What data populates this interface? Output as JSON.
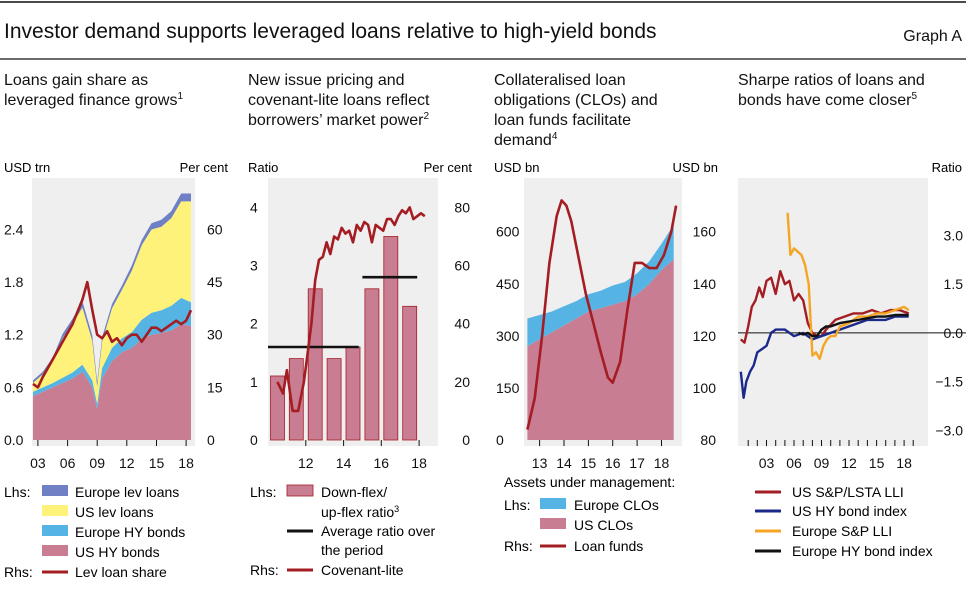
{
  "header": {
    "title": "Investor demand supports leveraged loans relative to high-yield bonds",
    "graph_label": "Graph A"
  },
  "colors": {
    "europe_lev": "#6f80c4",
    "us_lev": "#fff27a",
    "europe_hy": "#55b4e4",
    "us_hy": "#c97d92",
    "line_red": "#a41d23",
    "line_navy": "#1b2a8a",
    "line_orange": "#f4a623",
    "line_black": "#111111",
    "panel_bg": "#efefef"
  },
  "panels": [
    {
      "title_lines": [
        "Loans gain share as",
        "leveraged finance grows"
      ],
      "title_sup": "1",
      "left_unit": "USD trn",
      "right_unit": "Per cent"
    },
    {
      "title_lines": [
        "New issue pricing and",
        "covenant-lite loans reflect",
        "borrowers’ market power"
      ],
      "title_sup": "2",
      "left_unit": "Ratio",
      "right_unit": "Per cent"
    },
    {
      "title_lines": [
        "Collateralised loan",
        "obligations (CLOs) and",
        "loan funds facilitate",
        "demand"
      ],
      "title_sup": "4",
      "left_unit": "USD bn",
      "right_unit": "USD bn"
    },
    {
      "title_lines": [
        "Sharpe ratios of loans and",
        "bonds have come closer"
      ],
      "title_sup": "5",
      "left_unit": "",
      "right_unit": "Ratio"
    }
  ],
  "legends": {
    "p1": {
      "lhs": "Lhs:",
      "rhs": "Rhs:",
      "items": [
        "Europe lev loans",
        "US lev loans",
        "Europe HY bonds",
        "US HY bonds",
        "Lev loan share"
      ]
    },
    "p2": {
      "lhs": "Lhs:",
      "rhs": "Rhs:",
      "bar_l1": "Down-flex/",
      "bar_l2": "up-flex ratio",
      "bar_sup": "3",
      "avg_l1": "Average ratio over",
      "avg_l2": "the period",
      "covlite": "Covenant-lite"
    },
    "p3": {
      "heading": "Assets under management:",
      "lhs": "Lhs:",
      "rhs": "Rhs:",
      "items": [
        "Europe CLOs",
        "US CLOs",
        "Loan funds"
      ]
    },
    "p4": {
      "items": [
        "US S&P/LSTA LLI",
        "US HY bond index",
        "Europe S&P LLI",
        "Europe HY bond index"
      ]
    }
  },
  "chart_data": [
    {
      "type": "area",
      "ylabel_left": "USD trn",
      "ylabel_right": "Per cent",
      "ylim_left": [
        0,
        2.85
      ],
      "ylim_right": [
        0,
        71.25
      ],
      "yticks_left": [
        "0.0",
        "0.6",
        "1.2",
        "1.8",
        "2.4"
      ],
      "yticks_left_values": [
        0,
        0.6,
        1.2,
        1.8,
        2.4
      ],
      "yticks_right": [
        "0",
        "15",
        "30",
        "45",
        "60"
      ],
      "yticks_right_values": [
        0,
        15,
        30,
        45,
        60
      ],
      "xlim": [
        2002.5,
        2018.8
      ],
      "xticks": [
        "03",
        "06",
        "09",
        "12",
        "15",
        "18"
      ],
      "xtick_values": [
        2003,
        2006,
        2009,
        2012,
        2015,
        2018
      ],
      "x": [
        2002.5,
        2003.5,
        2004.5,
        2005.5,
        2006.5,
        2007.5,
        2008.5,
        2009.0,
        2009.5,
        2010.5,
        2011.5,
        2012.5,
        2013.5,
        2014.5,
        2015.5,
        2016.5,
        2017.5,
        2018.5
      ],
      "series": [
        {
          "name": "US HY bonds",
          "values": [
            0.5,
            0.55,
            0.6,
            0.65,
            0.7,
            0.78,
            0.6,
            0.35,
            0.7,
            0.9,
            1.0,
            1.05,
            1.15,
            1.2,
            1.22,
            1.25,
            1.32,
            1.3
          ]
        },
        {
          "name": "Europe HY bonds",
          "values": [
            0.05,
            0.05,
            0.05,
            0.06,
            0.07,
            0.08,
            0.08,
            0.06,
            0.12,
            0.15,
            0.16,
            0.18,
            0.22,
            0.25,
            0.26,
            0.28,
            0.3,
            0.27
          ]
        },
        {
          "name": "US lev loans",
          "values": [
            0.1,
            0.15,
            0.25,
            0.45,
            0.55,
            0.65,
            0.45,
            0.2,
            0.3,
            0.45,
            0.55,
            0.7,
            0.85,
            0.95,
            0.95,
            1.0,
            1.1,
            1.15
          ]
        },
        {
          "name": "Europe lev loans",
          "values": [
            0.03,
            0.03,
            0.04,
            0.05,
            0.06,
            0.07,
            0.06,
            0.05,
            0.05,
            0.05,
            0.05,
            0.06,
            0.06,
            0.07,
            0.08,
            0.08,
            0.09,
            0.09
          ]
        }
      ],
      "line_rhs": {
        "name": "Lev loan share",
        "x": [
          2002.5,
          2003.0,
          2003.5,
          2004.5,
          2005.5,
          2006.5,
          2007.5,
          2008.0,
          2008.5,
          2009.0,
          2009.5,
          2010.0,
          2010.5,
          2011.0,
          2011.5,
          2012.0,
          2012.5,
          2013.0,
          2013.5,
          2014.0,
          2014.5,
          2015.0,
          2015.5,
          2016.0,
          2016.5,
          2017.0,
          2017.5,
          2018.0,
          2018.5
        ],
        "values": [
          16,
          15,
          18,
          23,
          28,
          33,
          40,
          45,
          37,
          30,
          29,
          31,
          28,
          29,
          27,
          29,
          30,
          30,
          28,
          30,
          32,
          32,
          31,
          32,
          33,
          34,
          33,
          34,
          37
        ]
      }
    },
    {
      "type": "bar",
      "ylabel_left": "Ratio",
      "ylabel_right": "Per cent",
      "ylim_left": [
        0,
        4.3
      ],
      "ylim_right": [
        0,
        86
      ],
      "yticks_left": [
        "0",
        "1",
        "2",
        "3",
        "4"
      ],
      "yticks_left_values": [
        0,
        1,
        2,
        3,
        4
      ],
      "yticks_right": [
        "0",
        "20",
        "40",
        "60",
        "80"
      ],
      "yticks_right_values": [
        0,
        20,
        40,
        60,
        80
      ],
      "xlim": [
        2010,
        2019
      ],
      "xticks": [
        "12",
        "14",
        "16",
        "18"
      ],
      "xtick_values": [
        2012,
        2014,
        2016,
        2018
      ],
      "categories": [
        2010.5,
        2011.5,
        2012.5,
        2013.5,
        2014.5,
        2015.5,
        2016.5,
        2017.5,
        2018.5
      ],
      "values": [
        1.1,
        1.4,
        2.6,
        1.4,
        1.6,
        2.6,
        3.5,
        2.3,
        0
      ],
      "bar_series_name": "Down-flex/up-flex ratio",
      "average_lines": [
        {
          "x": [
            2010,
            2014.8
          ],
          "value": 1.6
        },
        {
          "x": [
            2015.0,
            2017.9
          ],
          "value": 2.8
        }
      ],
      "line_rhs": {
        "name": "Covenant-lite",
        "x": [
          2010.5,
          2010.8,
          2011.0,
          2011.3,
          2011.6,
          2011.9,
          2012.1,
          2012.3,
          2012.5,
          2012.7,
          2012.9,
          2013.1,
          2013.3,
          2013.5,
          2013.7,
          2013.9,
          2014.1,
          2014.3,
          2014.5,
          2014.7,
          2014.9,
          2015.1,
          2015.3,
          2015.5,
          2015.7,
          2015.9,
          2016.1,
          2016.3,
          2016.5,
          2016.7,
          2016.9,
          2017.1,
          2017.3,
          2017.5,
          2017.7,
          2017.9,
          2018.1,
          2018.3
        ],
        "values": [
          20,
          16,
          24,
          10,
          10,
          20,
          30,
          40,
          55,
          62,
          63,
          68,
          64,
          70,
          69,
          73,
          71,
          72,
          68,
          74,
          72,
          75,
          74,
          68,
          74,
          73,
          72,
          76,
          76,
          74,
          77,
          79,
          78,
          80,
          76,
          77,
          78,
          77
        ]
      }
    },
    {
      "type": "area",
      "ylabel_left": "USD bn",
      "ylabel_right": "USD bn",
      "ylim_left": [
        0,
        720
      ],
      "ylim_right": [
        80,
        176
      ],
      "yticks_left": [
        "0",
        "150",
        "300",
        "450",
        "600"
      ],
      "yticks_left_values": [
        0,
        150,
        300,
        450,
        600
      ],
      "yticks_right": [
        "80",
        "100",
        "120",
        "140",
        "160"
      ],
      "yticks_right_values": [
        80,
        100,
        120,
        140,
        160
      ],
      "xlim": [
        2012.4,
        2018.8
      ],
      "xticks": [
        "13",
        "14",
        "15",
        "16",
        "17",
        "18"
      ],
      "xtick_values": [
        2013,
        2014,
        2015,
        2016,
        2017,
        2018
      ],
      "x": [
        2012.5,
        2013.0,
        2013.5,
        2014.0,
        2014.5,
        2015.0,
        2015.5,
        2016.0,
        2016.5,
        2017.0,
        2017.5,
        2018.0,
        2018.5
      ],
      "series": [
        {
          "name": "US CLOs",
          "values": [
            270,
            290,
            310,
            330,
            350,
            370,
            380,
            390,
            400,
            420,
            450,
            490,
            520
          ]
        },
        {
          "name": "Europe CLOs",
          "values": [
            80,
            70,
            60,
            55,
            50,
            50,
            50,
            55,
            55,
            60,
            65,
            75,
            100
          ]
        }
      ],
      "line_rhs": {
        "name": "Loan funds",
        "x": [
          2012.5,
          2012.8,
          2013.1,
          2013.4,
          2013.7,
          2013.9,
          2014.1,
          2014.3,
          2014.6,
          2014.9,
          2015.2,
          2015.5,
          2015.8,
          2016.0,
          2016.3,
          2016.6,
          2016.9,
          2017.2,
          2017.5,
          2017.8,
          2018.1,
          2018.4,
          2018.6
        ],
        "values": [
          84,
          96,
          120,
          148,
          166,
          172,
          170,
          164,
          150,
          136,
          125,
          114,
          104,
          102,
          110,
          130,
          148,
          148,
          146,
          146,
          151,
          160,
          170
        ]
      }
    },
    {
      "type": "line",
      "ylabel_right": "Ratio",
      "ylim": [
        -3.3,
        4.4
      ],
      "yticks": [
        "−3.0",
        "−1.5",
        "0.0",
        "1.5",
        "3.0"
      ],
      "ytick_values": [
        -3,
        -1.5,
        0,
        1.5,
        3
      ],
      "xlim": [
        2000,
        2020.5
      ],
      "xticks": [
        "03",
        "06",
        "09",
        "12",
        "15",
        "18"
      ],
      "xtick_values": [
        2003,
        2006,
        2009,
        2012,
        2015,
        2018
      ],
      "series": [
        {
          "name": "US S&P/LSTA LLI",
          "x": [
            2000.2,
            2000.6,
            2001.0,
            2001.4,
            2001.8,
            2002.2,
            2002.6,
            2003.0,
            2003.5,
            2004.0,
            2004.5,
            2005.0,
            2005.5,
            2006.0,
            2006.5,
            2007.0,
            2007.5,
            2008.0,
            2008.5,
            2009.0,
            2009.5,
            2010.5,
            2011.5,
            2012.5,
            2013.5,
            2014.5,
            2015.5,
            2016.5,
            2017.5,
            2018.5
          ],
          "values": [
            -0.2,
            -0.3,
            0.2,
            0.8,
            1.0,
            1.4,
            1.1,
            1.6,
            1.7,
            1.2,
            1.9,
            1.5,
            1.6,
            1.0,
            1.2,
            1.0,
            0.3,
            0.0,
            -0.1,
            -0.1,
            0.1,
            0.4,
            0.5,
            0.6,
            0.6,
            0.7,
            0.6,
            0.7,
            0.7,
            0.6
          ]
        },
        {
          "name": "US HY bond index",
          "x": [
            2000.2,
            2000.5,
            2000.8,
            2001.2,
            2001.6,
            2002.0,
            2002.5,
            2003.0,
            2003.5,
            2004.0,
            2005.0,
            2006.0,
            2007.0,
            2008.0,
            2009.0,
            2010.0,
            2011.0,
            2012.0,
            2013.0,
            2014.0,
            2015.0,
            2016.0,
            2017.0,
            2018.0,
            2018.5
          ],
          "values": [
            -1.2,
            -2.0,
            -1.5,
            -1.2,
            -1.0,
            -0.6,
            -0.5,
            -0.4,
            0.0,
            0.1,
            0.1,
            -0.1,
            0.0,
            -0.2,
            -0.1,
            0.0,
            0.1,
            0.2,
            0.3,
            0.4,
            0.4,
            0.4,
            0.5,
            0.5,
            0.5
          ]
        },
        {
          "name": "Europe S&P LLI",
          "x": [
            2005.3,
            2005.6,
            2006.0,
            2006.4,
            2006.8,
            2007.2,
            2007.6,
            2008.0,
            2008.4,
            2008.8,
            2009.2,
            2009.6,
            2010.0,
            2010.5,
            2011.0,
            2012.0,
            2013.0,
            2014.0,
            2015.0,
            2016.0,
            2017.0,
            2018.0,
            2018.5
          ],
          "values": [
            3.7,
            2.4,
            2.6,
            2.5,
            2.4,
            2.1,
            1.5,
            -0.7,
            -0.6,
            -0.8,
            -0.4,
            -0.2,
            -0.1,
            -0.1,
            0.2,
            0.3,
            0.5,
            0.5,
            0.6,
            0.6,
            0.7,
            0.8,
            0.7
          ]
        },
        {
          "name": "Europe HY bond index",
          "x": [
            2006.5,
            2007.0,
            2007.5,
            2008.0,
            2008.5,
            2009.0,
            2009.5,
            2010.0,
            2011.0,
            2012.0,
            2013.0,
            2014.0,
            2015.0,
            2016.0,
            2017.0,
            2018.0,
            2018.5
          ],
          "values": [
            0.0,
            -0.05,
            0.0,
            -0.1,
            -0.1,
            0.1,
            0.2,
            0.2,
            0.3,
            0.35,
            0.4,
            0.45,
            0.5,
            0.5,
            0.55,
            0.55,
            0.55
          ]
        }
      ]
    }
  ]
}
